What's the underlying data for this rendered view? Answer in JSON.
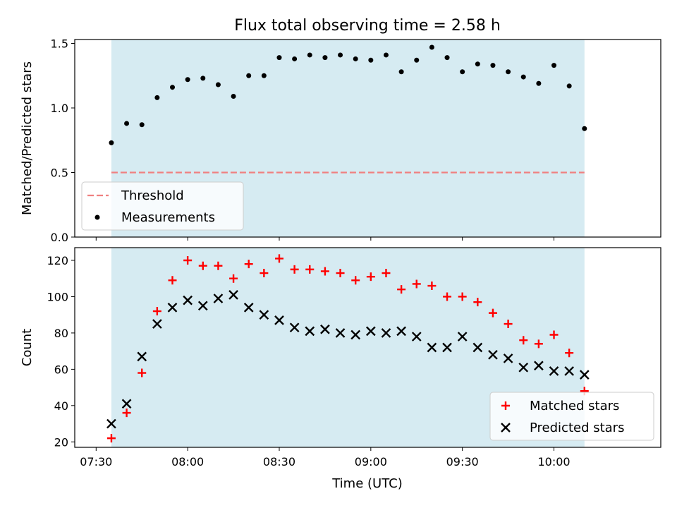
{
  "figure": {
    "title": "Flux total observing time = 2.58 h",
    "xlabel": "Time (UTC)"
  },
  "colors": {
    "shade": "#add8e6",
    "threshold": "#f08080",
    "measurements": "#000000",
    "matched": "#ff0000",
    "predicted": "#000000"
  },
  "chart_data": [
    {
      "type": "scatter",
      "ylabel": "Matched/Predicted stars",
      "ylim": [
        0,
        1.53
      ],
      "xlim": [
        "07:23",
        "10:35"
      ],
      "yticks": [
        0,
        0.5,
        1.0,
        1.5
      ],
      "ytick_labels": [
        "0.0",
        "0.5",
        "1.0",
        "1.5"
      ],
      "shaded_span": [
        "07:35",
        "10:10"
      ],
      "threshold": {
        "name": "Threshold",
        "value": 0.5,
        "style": "dashed"
      },
      "legend": {
        "placement": "lower-left",
        "entries": [
          "Threshold",
          "Measurements"
        ]
      },
      "series": [
        {
          "name": "Measurements",
          "marker": "dot",
          "x": [
            "07:35",
            "07:40",
            "07:45",
            "07:50",
            "07:55",
            "08:00",
            "08:05",
            "08:10",
            "08:15",
            "08:20",
            "08:25",
            "08:30",
            "08:35",
            "08:40",
            "08:45",
            "08:50",
            "08:55",
            "09:00",
            "09:05",
            "09:10",
            "09:15",
            "09:20",
            "09:25",
            "09:30",
            "09:35",
            "09:40",
            "09:45",
            "09:50",
            "09:55",
            "10:00",
            "10:05",
            "10:10"
          ],
          "y": [
            0.73,
            0.88,
            0.87,
            1.08,
            1.16,
            1.22,
            1.23,
            1.18,
            1.09,
            1.25,
            1.25,
            1.39,
            1.38,
            1.41,
            1.39,
            1.41,
            1.38,
            1.37,
            1.41,
            1.28,
            1.37,
            1.47,
            1.39,
            1.28,
            1.34,
            1.33,
            1.28,
            1.24,
            1.19,
            1.33,
            1.17,
            0.84
          ]
        }
      ]
    },
    {
      "type": "scatter",
      "ylabel": "Count",
      "ylim": [
        17,
        127
      ],
      "xlim": [
        "07:23",
        "10:35"
      ],
      "yticks": [
        20,
        40,
        60,
        80,
        100,
        120
      ],
      "ytick_labels": [
        "20",
        "40",
        "60",
        "80",
        "100",
        "120"
      ],
      "xticks": [
        "07:30",
        "08:00",
        "08:30",
        "09:00",
        "09:30",
        "10:00"
      ],
      "xtick_labels": [
        "07:30",
        "08:00",
        "08:30",
        "09:00",
        "09:30",
        "10:00"
      ],
      "shaded_span": [
        "07:35",
        "10:10"
      ],
      "legend": {
        "placement": "lower-right",
        "entries": [
          "Matched stars",
          "Predicted stars"
        ]
      },
      "series": [
        {
          "name": "Matched stars",
          "marker": "plus",
          "x": [
            "07:35",
            "07:40",
            "07:45",
            "07:50",
            "07:55",
            "08:00",
            "08:05",
            "08:10",
            "08:15",
            "08:20",
            "08:25",
            "08:30",
            "08:35",
            "08:40",
            "08:45",
            "08:50",
            "08:55",
            "09:00",
            "09:05",
            "09:10",
            "09:15",
            "09:20",
            "09:25",
            "09:30",
            "09:35",
            "09:40",
            "09:45",
            "09:50",
            "09:55",
            "10:00",
            "10:05",
            "10:10"
          ],
          "y": [
            22,
            36,
            58,
            92,
            109,
            120,
            117,
            117,
            110,
            118,
            113,
            121,
            115,
            115,
            114,
            113,
            109,
            111,
            113,
            104,
            107,
            106,
            100,
            100,
            97,
            91,
            85,
            76,
            74,
            79,
            69,
            48
          ]
        },
        {
          "name": "Predicted stars",
          "marker": "x",
          "x": [
            "07:35",
            "07:40",
            "07:45",
            "07:50",
            "07:55",
            "08:00",
            "08:05",
            "08:10",
            "08:15",
            "08:20",
            "08:25",
            "08:30",
            "08:35",
            "08:40",
            "08:45",
            "08:50",
            "08:55",
            "09:00",
            "09:05",
            "09:10",
            "09:15",
            "09:20",
            "09:25",
            "09:30",
            "09:35",
            "09:40",
            "09:45",
            "09:50",
            "09:55",
            "10:00",
            "10:05",
            "10:10"
          ],
          "y": [
            30,
            41,
            67,
            85,
            94,
            98,
            95,
            99,
            101,
            94,
            90,
            87,
            83,
            81,
            82,
            80,
            79,
            81,
            80,
            81,
            78,
            72,
            72,
            78,
            72,
            68,
            66,
            61,
            62,
            59,
            59,
            57
          ]
        }
      ]
    }
  ]
}
